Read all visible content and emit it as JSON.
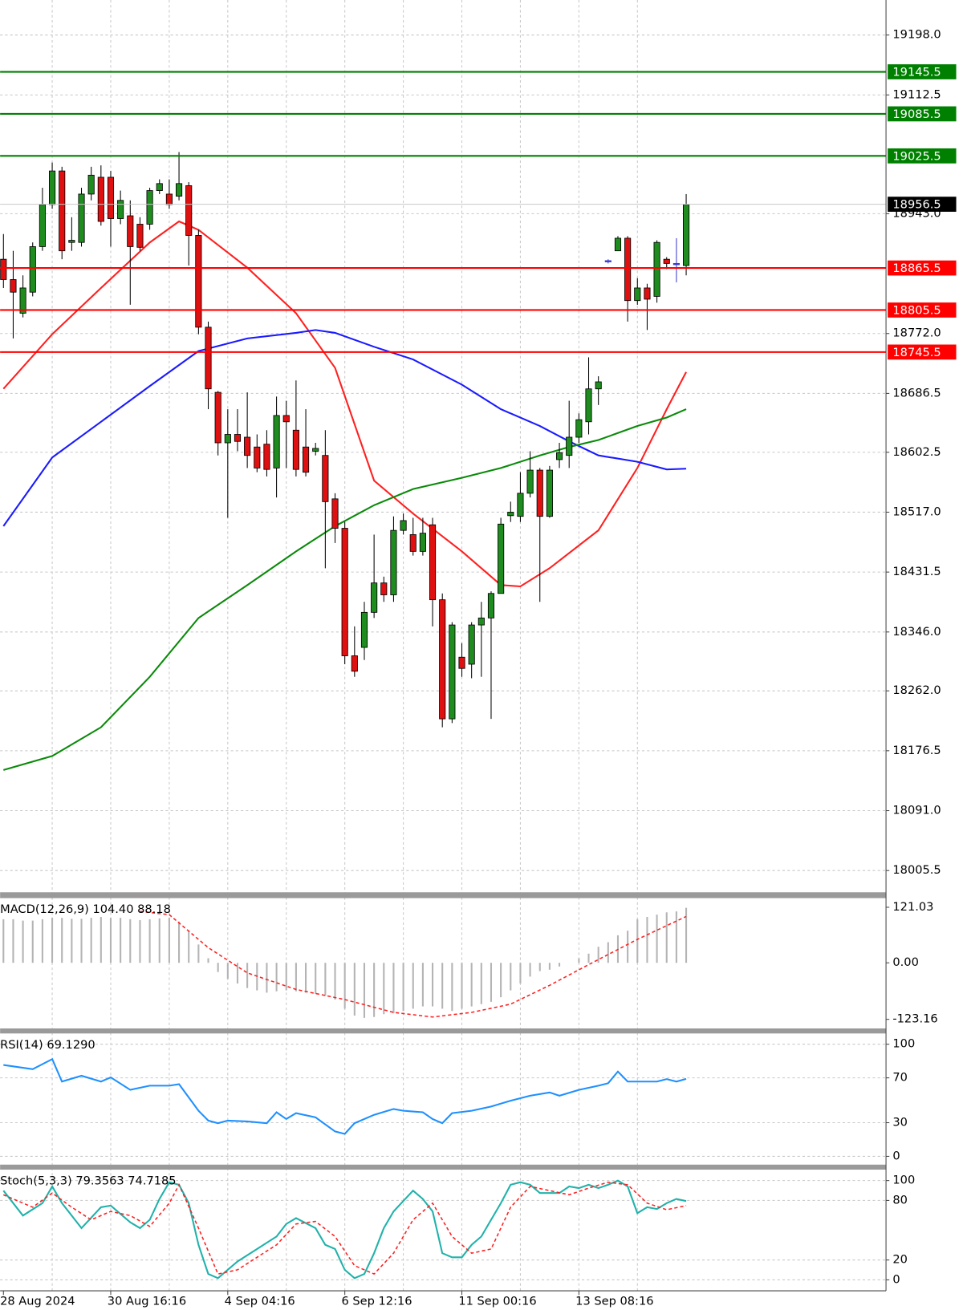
{
  "chart_data": [
    {
      "type": "candlestick",
      "categories": [
        "28 Aug 2024",
        null,
        null,
        null,
        null,
        null,
        null,
        null,
        null,
        null,
        null,
        "30 Aug 16:16",
        null,
        null,
        null,
        null,
        null,
        null,
        null,
        null,
        null,
        null,
        null,
        "4 Sep 04:16",
        null,
        null,
        null,
        null,
        null,
        null,
        null,
        null,
        null,
        null,
        null,
        "6 Sep 12:16",
        null,
        null,
        null,
        null,
        null,
        null,
        null,
        null,
        null,
        null,
        null,
        "11 Sep 00:16",
        null,
        null,
        null,
        null,
        null,
        null,
        null,
        null,
        null,
        null,
        null,
        "13 Sep 08:16",
        null,
        null,
        null,
        null,
        null,
        null,
        null,
        null,
        null,
        null,
        null
      ],
      "open": [
        18878,
        18849,
        18801,
        18831,
        18896,
        18956,
        19004,
        18902,
        18902,
        18971,
        18995,
        18995,
        18936,
        18940,
        18928,
        18928,
        18976,
        18971,
        18968,
        18983,
        18912,
        18781,
        18688,
        18616,
        18628,
        18624,
        18610,
        18614,
        18580,
        18655,
        18634,
        18610,
        18604,
        18598,
        18536,
        18494,
        18312,
        18324,
        18374,
        18416,
        18399,
        18491,
        18485,
        18461,
        18499,
        18392,
        18222,
        18310,
        18300,
        18356,
        18366,
        18401,
        18512,
        18511,
        18544,
        18577,
        18511,
        18592,
        18598,
        18624,
        18646,
        18693,
        18876,
        18890,
        18908,
        18819,
        18837,
        18825,
        18878,
        18872,
        18869
      ],
      "high": [
        18914,
        18890,
        18855,
        18902,
        18980,
        19016,
        19010,
        18938,
        18980,
        19010,
        19012,
        19004,
        18976,
        18962,
        18938,
        18980,
        18992,
        18992,
        19031,
        18988,
        18920,
        18789,
        18690,
        18664,
        18664,
        18688,
        18628,
        18634,
        18682,
        18676,
        18705,
        18664,
        18616,
        18634,
        18544,
        18503,
        18354,
        18389,
        18485,
        18425,
        18511,
        18515,
        18509,
        18509,
        18509,
        18401,
        18360,
        18330,
        18360,
        18389,
        18404,
        18509,
        18532,
        18574,
        18604,
        18580,
        18583,
        18616,
        18676,
        18658,
        18738,
        18711,
        18878,
        18911,
        18911,
        18851,
        18843,
        18905,
        18881,
        18908,
        18971
      ],
      "low": [
        18837,
        18765,
        18795,
        18825,
        18890,
        18950,
        18878,
        18890,
        18896,
        18962,
        18926,
        18896,
        18928,
        18813,
        18890,
        18920,
        18971,
        18950,
        18962,
        18869,
        18771,
        18664,
        18598,
        18509,
        18604,
        18580,
        18574,
        18568,
        18538,
        18580,
        18568,
        18568,
        18598,
        18437,
        18473,
        18300,
        18282,
        18306,
        18366,
        18389,
        18389,
        18485,
        18455,
        18455,
        18354,
        18210,
        18216,
        18282,
        18280,
        18282,
        18222,
        18401,
        18503,
        18503,
        18538,
        18389,
        18509,
        18580,
        18580,
        18616,
        18628,
        18670,
        18872,
        18890,
        18789,
        18813,
        18777,
        18816,
        18864,
        18845,
        18855
      ],
      "close": [
        18849,
        18831,
        18837,
        18896,
        18956,
        19004,
        18890,
        18905,
        18971,
        18998,
        18932,
        18936,
        18962,
        18896,
        18895,
        18976,
        18986,
        18956,
        18986,
        18912,
        18781,
        18693,
        18616,
        18628,
        18618,
        18598,
        18580,
        18578,
        18655,
        18646,
        18578,
        18574,
        18608,
        18532,
        18494,
        18312,
        18290,
        18374,
        18416,
        18399,
        18491,
        18505,
        18461,
        18487,
        18392,
        18222,
        18356,
        18294,
        18356,
        18366,
        18401,
        18500,
        18517,
        18544,
        18577,
        18511,
        18577,
        18602,
        18624,
        18649,
        18693,
        18703,
        18876,
        18908,
        18819,
        18837,
        18821,
        18902,
        18872,
        18872,
        18956
      ],
      "up_color": "#1e8c1e",
      "down_color": "#e01010",
      "doji_color": "#3a3ad0",
      "ylim": [
        17974.5,
        19248
      ],
      "yticks": [
        {
          "value": 19198,
          "label": "19198.0"
        },
        {
          "value": 19112.5,
          "label": "19112.5"
        },
        {
          "value": 18943,
          "label": "18943.0"
        },
        {
          "value": 18772,
          "label": "18772.0"
        },
        {
          "value": 18686.5,
          "label": "18686.5"
        },
        {
          "value": 18602.5,
          "label": "18602.5"
        },
        {
          "value": 18517,
          "label": "18517.0"
        },
        {
          "value": 18431.5,
          "label": "18431.5"
        },
        {
          "value": 18346,
          "label": "18346.0"
        },
        {
          "value": 18262,
          "label": "18262.0"
        },
        {
          "value": 18176.5,
          "label": "18176.5"
        },
        {
          "value": 18091,
          "label": "18091.0"
        },
        {
          "value": 18005.5,
          "label": "18005.5"
        }
      ],
      "grid": true,
      "series": [
        {
          "color": "#ff2020",
          "x": [
            0,
            5,
            10,
            15,
            18,
            20,
            25,
            30,
            34,
            38,
            42,
            47,
            51,
            53,
            56,
            61,
            65,
            68,
            70
          ],
          "values": [
            18693,
            18771,
            18837,
            18902,
            18932,
            18920,
            18866,
            18801,
            18723,
            18562,
            18515,
            18461,
            18413,
            18411,
            18437,
            18491,
            18580,
            18664,
            18717
          ]
        },
        {
          "color": "#1a1aff",
          "x": [
            0,
            5,
            10,
            15,
            20,
            25,
            30,
            32,
            34,
            38,
            42,
            47,
            51,
            55,
            58,
            61,
            65,
            68,
            70
          ],
          "values": [
            18497,
            18595,
            18646,
            18697,
            18747,
            18765,
            18773,
            18777,
            18773,
            18753,
            18735,
            18699,
            18664,
            18640,
            18618,
            18598,
            18589,
            18578,
            18579
          ]
        },
        {
          "color": "#0a8a0a",
          "x": [
            0,
            5,
            10,
            15,
            20,
            25,
            30,
            34,
            38,
            42,
            47,
            51,
            55,
            58,
            61,
            65,
            68,
            70
          ],
          "values": [
            18149,
            18169,
            18210,
            18282,
            18366,
            18413,
            18461,
            18497,
            18527,
            18550,
            18566,
            18580,
            18598,
            18610,
            18620,
            18640,
            18652,
            18664
          ]
        }
      ],
      "levels": [
        {
          "value": 19145.5,
          "color": "#008000"
        },
        {
          "value": 19085.5,
          "color": "#008000"
        },
        {
          "value": 19025.5,
          "color": "#008000"
        },
        {
          "value": 18865.5,
          "color": "#ff0000"
        },
        {
          "value": 18805.5,
          "color": "#ff0000"
        },
        {
          "value": 18745.5,
          "color": "#ff0000"
        }
      ],
      "last_price": {
        "value": 18956.5,
        "color": "#000000"
      }
    },
    {
      "type": "macd",
      "title": "MACD(12,26,9) 104.40 88.18",
      "series": [
        {
          "type": "bar",
          "color": "#b4b4b4",
          "values": [
            95,
            95,
            92,
            92,
            95,
            98,
            98,
            96,
            96,
            98,
            100,
            98,
            98,
            95,
            93,
            95,
            97,
            98,
            90,
            70,
            40,
            10,
            -20,
            -35,
            -45,
            -55,
            -60,
            -65,
            -62,
            -60,
            -62,
            -65,
            -68,
            -72,
            -80,
            -100,
            -115,
            -120,
            -118,
            -112,
            -110,
            -105,
            -100,
            -95,
            -95,
            -100,
            -105,
            -100,
            -95,
            -90,
            -85,
            -75,
            -60,
            -45,
            -30,
            -18,
            -15,
            -8,
            0,
            10,
            20,
            35,
            45,
            60,
            70,
            95,
            100,
            105,
            110,
            112,
            120
          ]
        },
        {
          "type": "line",
          "color": "#ff2020",
          "dashed": true,
          "x": [
            14,
            17,
            21,
            25,
            30,
            35,
            40,
            44,
            48,
            52,
            56,
            60,
            65,
            70
          ],
          "values": [
            112,
            105,
            33,
            -22,
            -58,
            -80,
            -108,
            -118,
            -108,
            -90,
            -49,
            -4,
            51,
            101
          ]
        }
      ],
      "ylim": [
        -143,
        141
      ],
      "yticks": [
        121.03,
        {
          "value": 0,
          "label": "0.00"
        },
        -123.16
      ],
      "grid": false
    },
    {
      "type": "line",
      "title": "RSI(14) 69.1290",
      "series": [
        {
          "color": "#1e90ff",
          "x": [
            0,
            3,
            5,
            6,
            8,
            10,
            11,
            13,
            15,
            17,
            18,
            20,
            21,
            22,
            23,
            25,
            27,
            28,
            29,
            30,
            32,
            34,
            35,
            36,
            38,
            40,
            41,
            43,
            44,
            45,
            46,
            48,
            50,
            52,
            54,
            56,
            57,
            59,
            61,
            62,
            63,
            64,
            65,
            67,
            68,
            69,
            70
          ],
          "values": [
            81.5,
            77.8,
            86.7,
            66.7,
            71.9,
            66.7,
            70.4,
            59.3,
            63.0,
            63.0,
            64.4,
            40.7,
            31.9,
            29.6,
            31.9,
            31.1,
            29.6,
            39.3,
            33.3,
            38.5,
            34.8,
            22.2,
            20.0,
            29.6,
            37.0,
            42.2,
            40.7,
            39.3,
            33.3,
            29.6,
            38.5,
            40.7,
            44.4,
            49.6,
            54.1,
            57.0,
            54.1,
            59.3,
            63.0,
            65.2,
            75.6,
            66.7,
            66.7,
            66.7,
            68.9,
            66.7,
            69.1
          ]
        }
      ],
      "ylim": [
        -7.4,
        109.6
      ],
      "yticks": [
        100,
        70,
        30,
        0
      ],
      "grid": true
    },
    {
      "type": "line",
      "title": "Stoch(5,3,3) 79.3563 74.7185",
      "series": [
        {
          "color": "#20b2aa",
          "x": [
            0,
            2,
            4,
            5,
            6,
            8,
            10,
            11,
            13,
            14,
            15,
            16,
            17,
            18,
            19,
            20,
            21,
            22,
            24,
            26,
            28,
            29,
            30,
            32,
            33,
            34,
            35,
            36,
            37,
            38,
            39,
            40,
            42,
            43,
            44,
            45,
            46,
            47,
            48,
            49,
            50,
            51,
            52,
            53,
            54,
            55,
            57,
            58,
            59,
            60,
            61,
            62,
            63,
            64,
            65,
            66,
            67,
            68,
            69,
            70
          ],
          "values": [
            89.9,
            64.7,
            77.3,
            94.1,
            77.3,
            52.1,
            73.1,
            74.8,
            58.0,
            52.1,
            60.5,
            81.5,
            98.3,
            95.8,
            77.3,
            35.3,
            5.9,
            1.7,
            18.5,
            31.1,
            43.7,
            56.3,
            62.2,
            52.1,
            35.3,
            31.1,
            10.1,
            1.7,
            5.9,
            26.9,
            52.1,
            68.9,
            89.9,
            81.5,
            68.9,
            26.9,
            22.7,
            22.7,
            35.3,
            43.7,
            60.5,
            77.3,
            95.8,
            98.3,
            95.8,
            87.4,
            87.4,
            94.1,
            92.4,
            95.8,
            92.4,
            95.8,
            100,
            94.1,
            67.2,
            73.1,
            71.4,
            77.3,
            81.5,
            79.4
          ]
        },
        {
          "color": "#ff2020",
          "dashed": true,
          "x": [
            0,
            3,
            5,
            7,
            9,
            11,
            13,
            15,
            17,
            18,
            20,
            22,
            24,
            26,
            28,
            30,
            32,
            34,
            36,
            38,
            40,
            42,
            44,
            46,
            48,
            50,
            52,
            54,
            56,
            58,
            60,
            62,
            64,
            66,
            68,
            70
          ],
          "values": [
            85.7,
            73.1,
            87.4,
            73.1,
            60.5,
            68.9,
            64.7,
            53.8,
            77.3,
            95.8,
            52.1,
            5.9,
            10.1,
            22.7,
            35.3,
            56.3,
            58.8,
            43.7,
            14.3,
            5.9,
            26.9,
            60.5,
            77.3,
            43.7,
            26.9,
            31.1,
            73.1,
            94.1,
            89.9,
            85.7,
            92.4,
            98.3,
            95.8,
            77.3,
            70.6,
            74.7
          ]
        }
      ],
      "ylim": [
        -11,
        111
      ],
      "yticks": [
        100,
        80,
        20,
        0
      ],
      "grid": true
    }
  ]
}
